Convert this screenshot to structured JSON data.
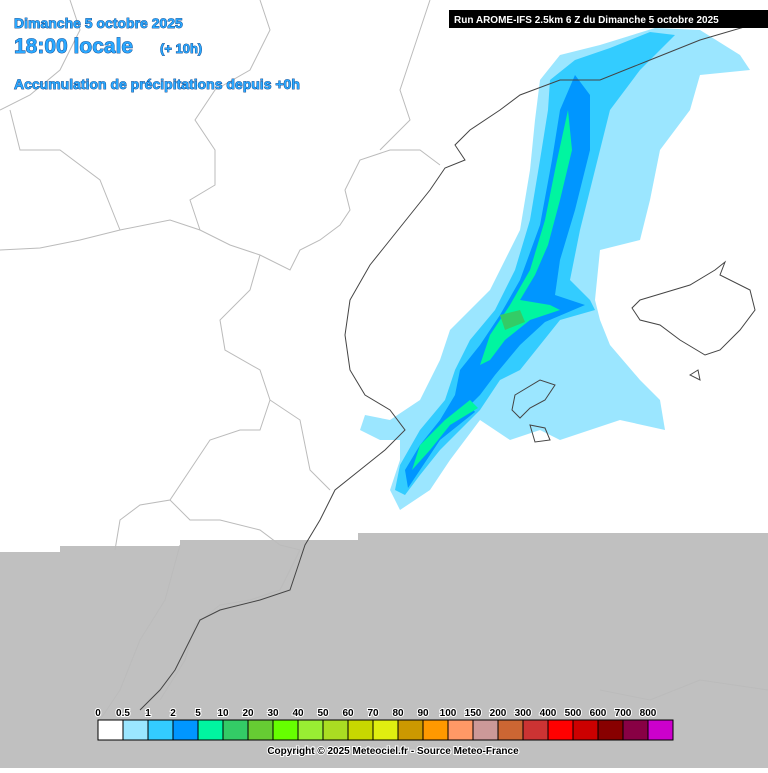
{
  "header": {
    "date": "Dimanche 5 octobre 2025",
    "time": "18:00 locale",
    "offset": "(+ 10h)",
    "subtitle": "Accumulation de précipitations depuis +0h"
  },
  "run_label": "Run AROME-IFS 2.5km 6 Z du Dimanche 5 octobre 2025",
  "legend": {
    "labels": [
      "0",
      "0.5",
      "1",
      "2",
      "5",
      "10",
      "20",
      "30",
      "40",
      "50",
      "60",
      "70",
      "80",
      "90",
      "100",
      "150",
      "200",
      "300",
      "400",
      "500",
      "600",
      "700",
      "800"
    ],
    "colors": [
      "#ffffff",
      "#9be6ff",
      "#33ccff",
      "#0096ff",
      "#00f5a0",
      "#33cc66",
      "#66cc33",
      "#66ff00",
      "#99ee33",
      "#aadd22",
      "#c8d800",
      "#e0ee10",
      "#cc9900",
      "#ff9900",
      "#ff9966",
      "#cc9999",
      "#cc6633",
      "#cc3333",
      "#ff0000",
      "#cc0000",
      "#880000",
      "#880044",
      "#cc00cc"
    ]
  },
  "copyright": "Copyright © 2025 Meteociel.fr - Source Meteo-France"
}
